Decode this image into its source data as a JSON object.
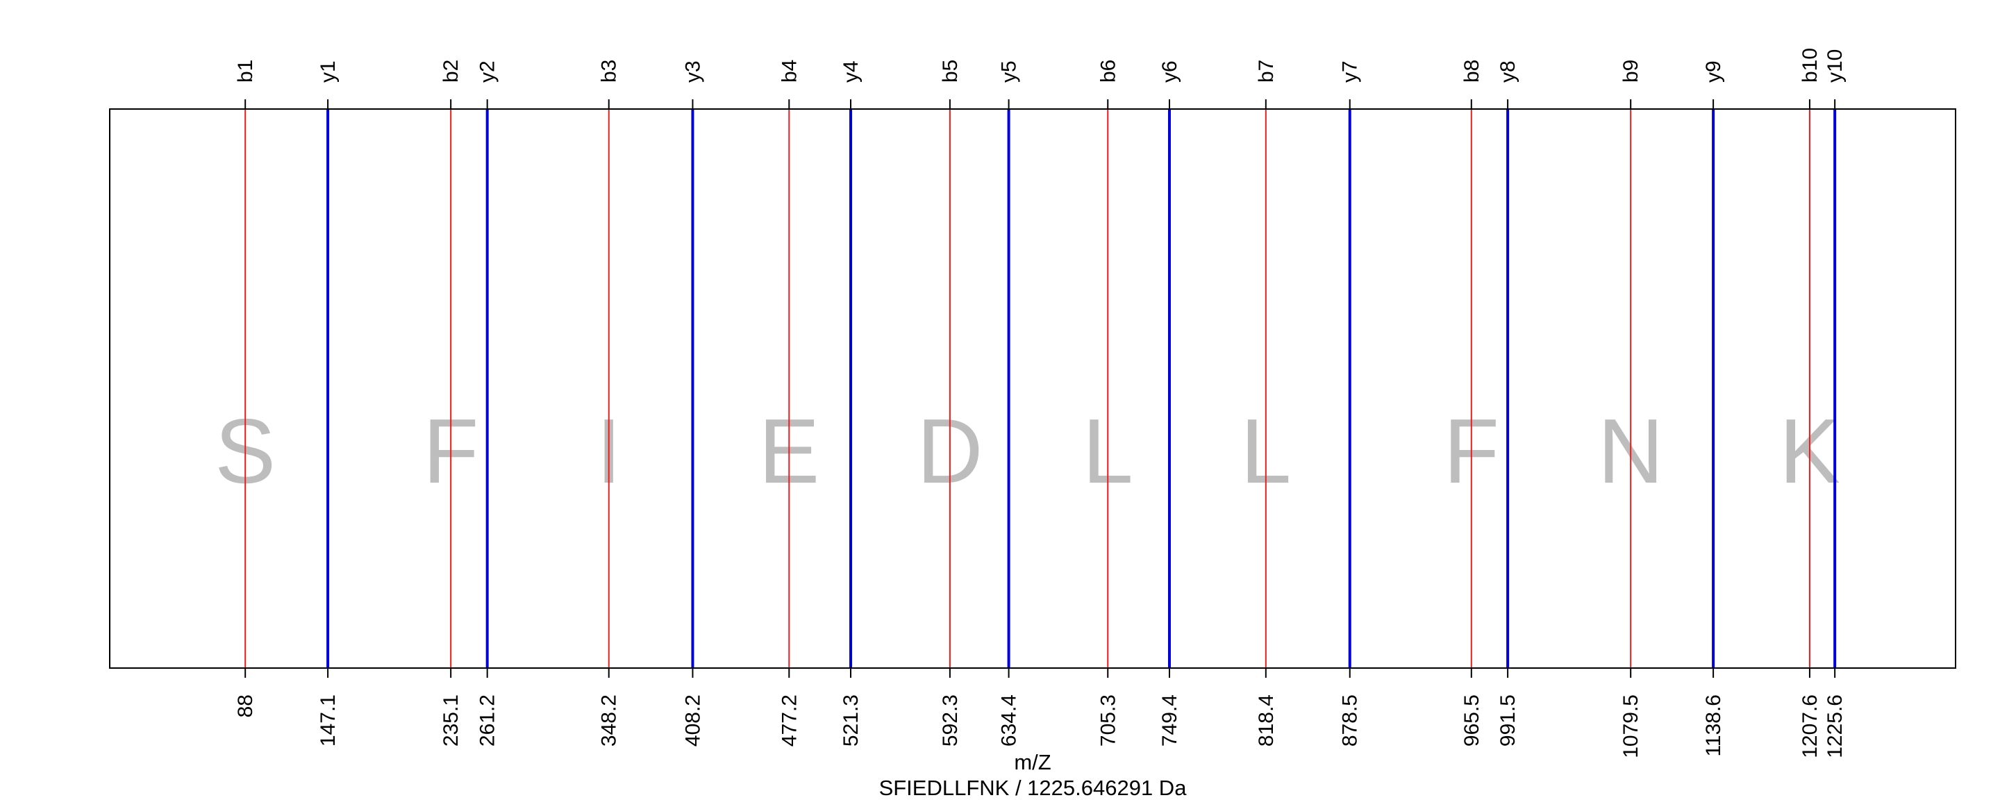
{
  "chart_data": {
    "type": "fragment-ion-map",
    "xlabel": "m/Z",
    "subtitle": "SFIEDLLFNK / 1225.646291 Da",
    "xlim": [
      -9,
      1312
    ],
    "grid": false,
    "legend": "none",
    "sequence": [
      "S",
      "F",
      "I",
      "E",
      "D",
      "L",
      "L",
      "F",
      "N",
      "K"
    ],
    "b_ions": {
      "labels": [
        "b1",
        "b2",
        "b3",
        "b4",
        "b5",
        "b6",
        "b7",
        "b8",
        "b9",
        "b10"
      ],
      "values": [
        88.0,
        235.1,
        348.2,
        477.2,
        592.3,
        705.3,
        818.4,
        965.5,
        1079.5,
        1207.6
      ],
      "tick_text": [
        "88",
        "235.1",
        "348.2",
        "477.2",
        "592.3",
        "705.3",
        "818.4",
        "965.5",
        "1079.5",
        "1207.6"
      ]
    },
    "y_ions": {
      "labels": [
        "y1",
        "y2",
        "y3",
        "y4",
        "y5",
        "y6",
        "y7",
        "y8",
        "y9",
        "y10"
      ],
      "values": [
        147.1,
        261.2,
        408.2,
        521.3,
        634.4,
        749.4,
        878.5,
        991.5,
        1138.6,
        1225.6
      ],
      "tick_text": [
        "147.1",
        "261.2",
        "408.2",
        "521.3",
        "634.4",
        "749.4",
        "878.5",
        "991.5",
        "1138.6",
        "1225.6"
      ]
    },
    "colors": {
      "b": "#ee1c1c",
      "y": "#0000dd",
      "residue": "#bdbdbd",
      "frame": "#000000"
    }
  }
}
